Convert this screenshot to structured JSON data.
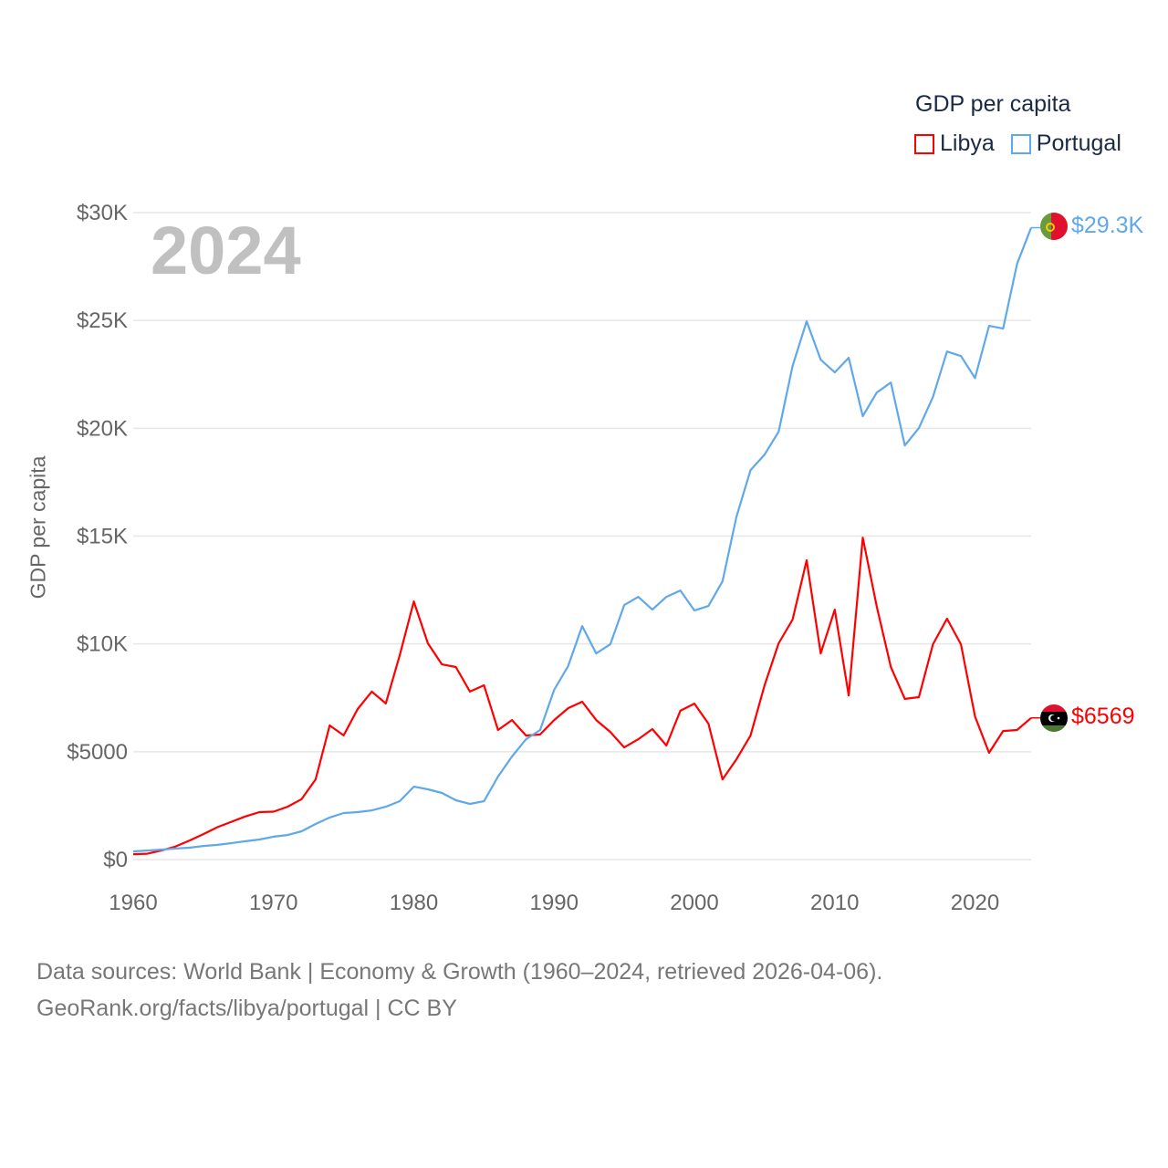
{
  "legend": {
    "title": "GDP per capita",
    "items": [
      {
        "label": "Libya",
        "color": "#ff0000"
      },
      {
        "label": "Portugal",
        "color": "#5fa8ea"
      }
    ]
  },
  "year_watermark": "2024",
  "end_labels": {
    "portugal": "$29.3K",
    "libya": "$6569"
  },
  "footer": {
    "line1": "Data sources: World Bank | Economy & Growth (1960–2024, retrieved 2026-04-06).",
    "line2": "GeoRank.org/facts/libya/portugal | CC BY"
  },
  "chart_data": {
    "type": "line",
    "title": "",
    "xlabel": "",
    "ylabel": "GDP per capita",
    "xlim": [
      1960,
      2024
    ],
    "ylim": [
      0,
      30000
    ],
    "x_ticks": [
      1960,
      1970,
      1980,
      1990,
      2000,
      2010,
      2020
    ],
    "x_tick_labels": [
      "1960",
      "1970",
      "1980",
      "1990",
      "2000",
      "2010",
      "2020"
    ],
    "y_ticks": [
      0,
      5000,
      10000,
      15000,
      20000,
      25000,
      30000
    ],
    "y_tick_labels": [
      "$0",
      "$5000",
      "$10K",
      "$15K",
      "$20K",
      "$25K",
      "$30K"
    ],
    "grid": true,
    "legend_position": "top-right",
    "x_start": 1960,
    "series": [
      {
        "name": "Libya",
        "color": "#ff0000",
        "values": [
          250,
          270,
          420,
          600,
          880,
          1180,
          1500,
          1750,
          2000,
          2200,
          2220,
          2450,
          2800,
          3720,
          6220,
          5760,
          6980,
          7790,
          7240,
          9480,
          11970,
          10030,
          9050,
          8930,
          7790,
          8080,
          6010,
          6470,
          5750,
          5800,
          6470,
          7020,
          7320,
          6470,
          5920,
          5200,
          5580,
          6050,
          5290,
          6900,
          7230,
          6300,
          3720,
          4650,
          5750,
          8080,
          10030,
          11130,
          13880,
          9560,
          11590,
          7610,
          14930,
          11720,
          8930,
          7450,
          7530,
          9980,
          11170,
          9980,
          6640,
          4950,
          5960,
          6010,
          6569
        ]
      },
      {
        "name": "Portugal",
        "color": "#5fa8ea",
        "values": [
          380,
          420,
          460,
          510,
          550,
          630,
          680,
          760,
          850,
          930,
          1060,
          1140,
          1310,
          1650,
          1950,
          2160,
          2200,
          2280,
          2450,
          2710,
          3380,
          3260,
          3090,
          2750,
          2580,
          2710,
          3850,
          4780,
          5580,
          6010,
          7870,
          8970,
          10830,
          9560,
          9980,
          11800,
          12180,
          11590,
          12180,
          12480,
          11550,
          11760,
          12900,
          15900,
          18060,
          18780,
          19840,
          22890,
          24960,
          23180,
          22590,
          23270,
          20560,
          21660,
          22120,
          19200,
          20010,
          21450,
          23560,
          23350,
          22330,
          24750,
          24620,
          27620,
          29300
        ]
      }
    ]
  }
}
